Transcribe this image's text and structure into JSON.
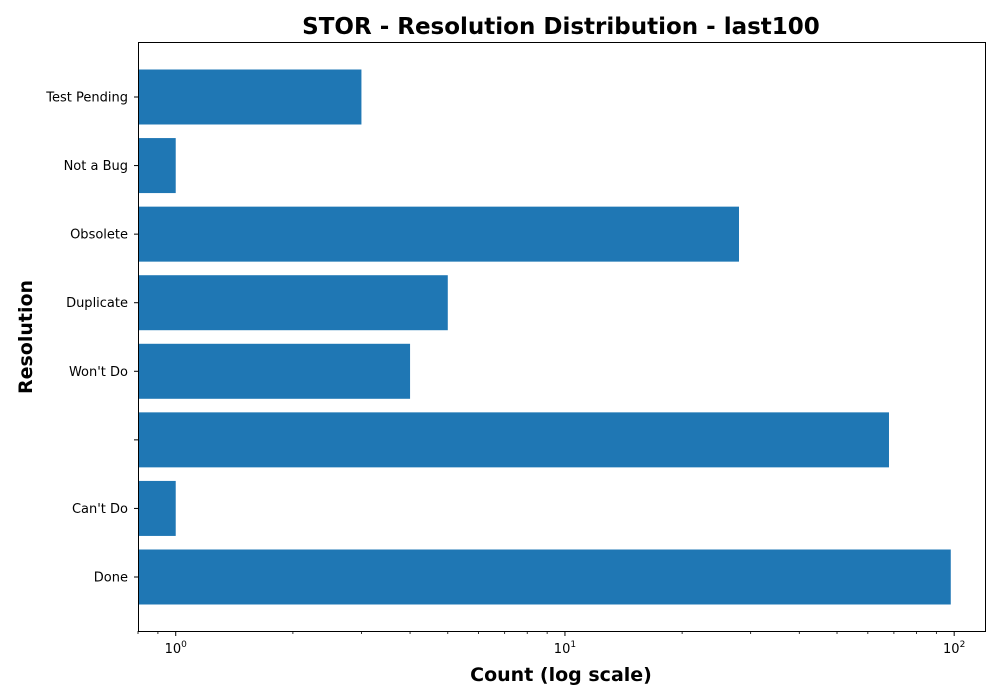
{
  "chart_data": {
    "type": "bar",
    "orientation": "horizontal",
    "title": "STOR - Resolution Distribution - last100",
    "xlabel": "Count (log scale)",
    "ylabel": "Resolution",
    "x_scale": "log",
    "xlim": [
      0.8,
      120
    ],
    "x_ticks": [
      {
        "value": 1,
        "base": "10",
        "exp": "0"
      },
      {
        "value": 10,
        "base": "10",
        "exp": "1"
      },
      {
        "value": 100,
        "base": "10",
        "exp": "2"
      }
    ],
    "categories": [
      "Done",
      "Can't Do",
      "",
      "Won't Do",
      "Duplicate",
      "Obsolete",
      "Not a Bug",
      "Test Pending"
    ],
    "values": [
      98,
      1,
      68,
      4,
      5,
      28,
      1,
      3
    ],
    "bar_color": "#1f77b4",
    "grid": false
  }
}
